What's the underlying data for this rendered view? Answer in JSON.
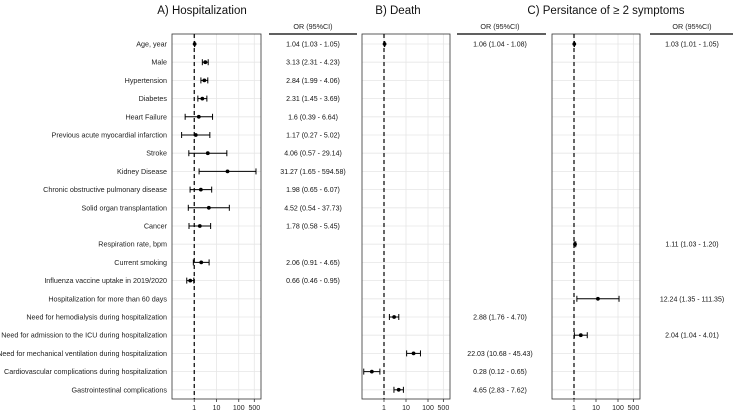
{
  "chart_data": {
    "type": "forest",
    "xscale": "log10",
    "reference_line": 1,
    "xticks": [
      "1",
      "10",
      "100",
      "500"
    ],
    "tick_values": [
      1,
      10,
      100,
      500
    ],
    "or_header": "OR (95%CI)",
    "rows": [
      "Age, year",
      "Male",
      "Hypertension",
      "Diabetes",
      "Heart Failure",
      "Previous acute myocardial infarction",
      "Stroke",
      "Kidney Disease",
      "Chronic obstructive pulmonary disease",
      "Solid organ transplantation",
      "Cancer",
      "Respiration rate, bpm",
      "Current smoking",
      "Influenza vaccine uptake in 2019/2020",
      "Hospitalization for more than 60 days",
      "Need for hemodialysis during hospitalization",
      "Need for admission to the ICU during hospitalization",
      "Need for mechanical ventilation during hospitalization",
      "Cardiovascular complications during hospitalization",
      "Gastrointestinal complications"
    ],
    "panels": [
      {
        "title": "A) Hospitalization",
        "estimates": [
          {
            "row": 0,
            "or": 1.04,
            "lo": 1.03,
            "hi": 1.05,
            "label": "1.04 (1.03 - 1.05)"
          },
          {
            "row": 1,
            "or": 3.13,
            "lo": 2.31,
            "hi": 4.23,
            "label": "3.13 (2.31 - 4.23)"
          },
          {
            "row": 2,
            "or": 2.84,
            "lo": 1.99,
            "hi": 4.06,
            "label": "2.84 (1.99 - 4.06)"
          },
          {
            "row": 3,
            "or": 2.31,
            "lo": 1.45,
            "hi": 3.69,
            "label": "2.31 (1.45 - 3.69)"
          },
          {
            "row": 4,
            "or": 1.6,
            "lo": 0.39,
            "hi": 6.64,
            "label": "1.6 (0.39 - 6.64)"
          },
          {
            "row": 5,
            "or": 1.17,
            "lo": 0.27,
            "hi": 5.02,
            "label": "1.17 (0.27 - 5.02)"
          },
          {
            "row": 6,
            "or": 4.06,
            "lo": 0.57,
            "hi": 29.14,
            "label": "4.06 (0.57 - 29.14)"
          },
          {
            "row": 7,
            "or": 31.27,
            "lo": 1.65,
            "hi": 594.58,
            "label": "31.27 (1.65 - 594.58)"
          },
          {
            "row": 8,
            "or": 1.98,
            "lo": 0.65,
            "hi": 6.07,
            "label": "1.98 (0.65 - 6.07)"
          },
          {
            "row": 9,
            "or": 4.52,
            "lo": 0.54,
            "hi": 37.73,
            "label": "4.52 (0.54 - 37.73)"
          },
          {
            "row": 10,
            "or": 1.78,
            "lo": 0.58,
            "hi": 5.45,
            "label": "1.78 (0.58 - 5.45)"
          },
          {
            "row": 12,
            "or": 2.06,
            "lo": 0.91,
            "hi": 4.65,
            "label": "2.06 (0.91 - 4.65)"
          },
          {
            "row": 13,
            "or": 0.66,
            "lo": 0.46,
            "hi": 0.95,
            "label": "0.66 (0.46 - 0.95)"
          }
        ]
      },
      {
        "title": "B) Death",
        "estimates": [
          {
            "row": 0,
            "or": 1.06,
            "lo": 1.04,
            "hi": 1.08,
            "label": "1.06 (1.04 - 1.08)"
          },
          {
            "row": 15,
            "or": 2.88,
            "lo": 1.76,
            "hi": 4.7,
            "label": "2.88 (1.76 - 4.70)"
          },
          {
            "row": 17,
            "or": 22.03,
            "lo": 10.68,
            "hi": 45.43,
            "label": "22.03 (10.68 - 45.43)"
          },
          {
            "row": 18,
            "or": 0.28,
            "lo": 0.12,
            "hi": 0.65,
            "label": "0.28 (0.12 - 0.65)"
          },
          {
            "row": 19,
            "or": 4.65,
            "lo": 2.83,
            "hi": 7.62,
            "label": "4.65 (2.83 - 7.62)"
          }
        ]
      },
      {
        "title": "C) Persitance of ≥ 2 symptoms",
        "estimates": [
          {
            "row": 0,
            "or": 1.03,
            "lo": 1.01,
            "hi": 1.05,
            "label": "1.03 (1.01 - 1.05)"
          },
          {
            "row": 11,
            "or": 1.11,
            "lo": 1.03,
            "hi": 1.2,
            "label": "1.11 (1.03 - 1.20)"
          },
          {
            "row": 14,
            "or": 12.24,
            "lo": 1.35,
            "hi": 111.35,
            "label": "12.24 (1.35 - 111.35)"
          },
          {
            "row": 16,
            "or": 2.04,
            "lo": 1.04,
            "hi": 4.01,
            "label": "2.04 (1.04 - 4.01)"
          }
        ]
      }
    ],
    "colors": {
      "grid": "#e6e6e6",
      "ink": "#000000",
      "frame": "#333333"
    }
  }
}
